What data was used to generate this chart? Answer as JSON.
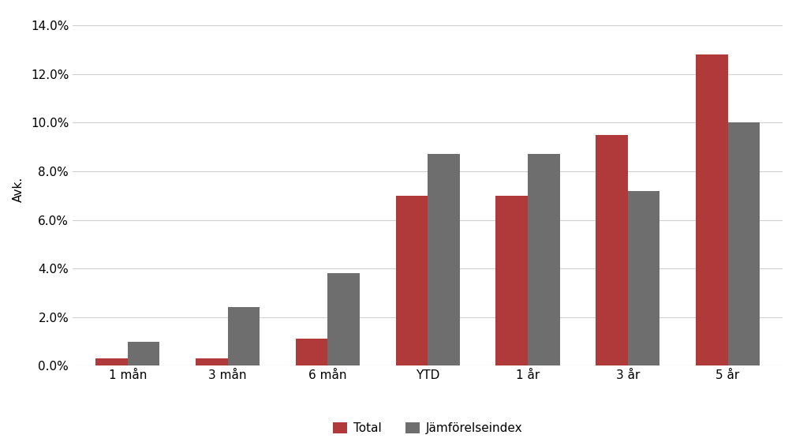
{
  "categories": [
    "1 mån",
    "3 mån",
    "6 mån",
    "YTD",
    "1 år",
    "3 år",
    "5 år"
  ],
  "total": [
    0.003,
    0.003,
    0.011,
    0.07,
    0.07,
    0.095,
    0.128
  ],
  "index": [
    0.01,
    0.024,
    0.038,
    0.087,
    0.087,
    0.072,
    0.1
  ],
  "total_color": "#b03a3a",
  "index_color": "#6e6e6e",
  "ylabel": "Avk.",
  "legend_total": "Total",
  "legend_index": "Jämförelseindex",
  "ylim_max": 0.145,
  "yticks": [
    0.0,
    0.02,
    0.04,
    0.06,
    0.08,
    0.1,
    0.12,
    0.14
  ],
  "background_color": "#ffffff",
  "grid_color": "#d0d0d0",
  "bar_width": 0.32,
  "ylabel_fontsize": 11,
  "tick_fontsize": 11,
  "legend_fontsize": 11
}
